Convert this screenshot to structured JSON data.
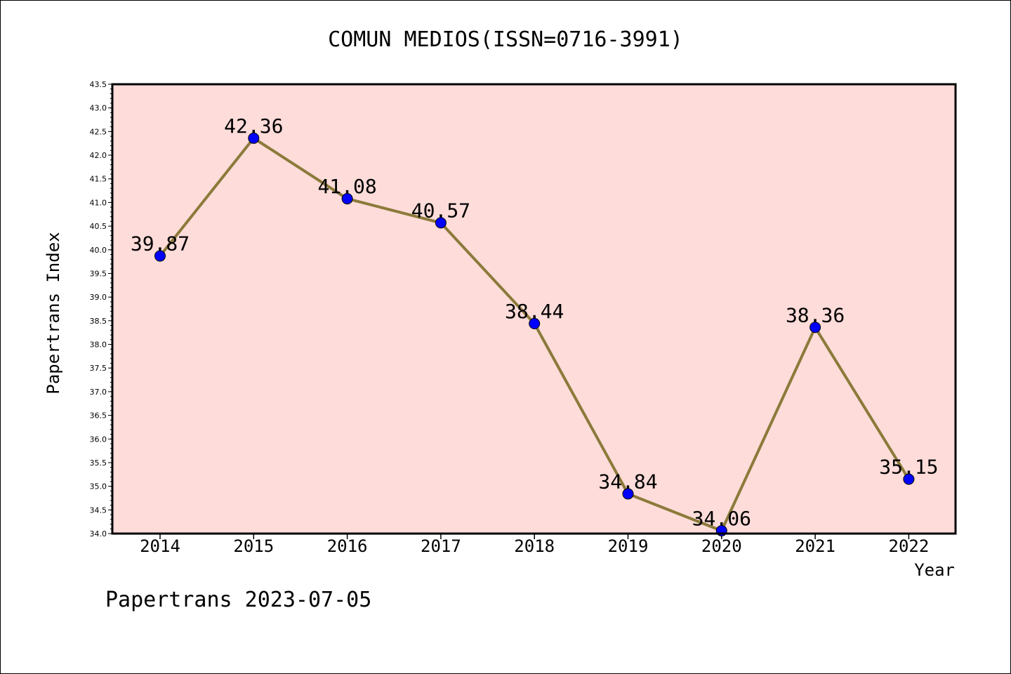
{
  "chart_data": {
    "type": "line",
    "title": "COMUN MEDIOS(ISSN=0716-3991)",
    "xlabel": "Year",
    "ylabel": "Papertrans Index",
    "footer": "Papertrans 2023-07-05",
    "categories": [
      "2014",
      "2015",
      "2016",
      "2017",
      "2018",
      "2019",
      "2020",
      "2021",
      "2022"
    ],
    "series": [
      {
        "values": [
          39.87,
          42.36,
          41.08,
          40.57,
          38.44,
          34.84,
          34.06,
          38.36,
          35.15
        ],
        "labels": [
          "39.87",
          "42.36",
          "41.08",
          "40.57",
          "38.44",
          "34.84",
          "34.06",
          "38.36",
          "35.15"
        ]
      }
    ],
    "ylim": [
      34.0,
      43.5
    ],
    "yticks": [
      "34.0",
      "34.5",
      "35.0",
      "35.5",
      "36.0",
      "36.5",
      "37.0",
      "37.5",
      "38.0",
      "38.5",
      "39.0",
      "39.5",
      "40.0",
      "40.5",
      "41.0",
      "41.5",
      "42.0",
      "42.5",
      "43.0",
      "43.5"
    ],
    "grid": false,
    "colors": {
      "plot_background": "#fddcd9",
      "line": "#8b7a3a",
      "marker": "#0000ff"
    }
  }
}
